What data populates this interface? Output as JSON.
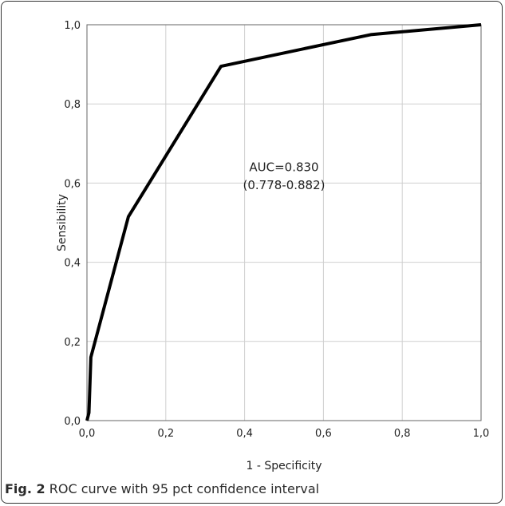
{
  "chart_data": {
    "type": "line",
    "xlabel": "1 - Specificity",
    "ylabel": "Sensibility",
    "xlim": [
      0,
      1
    ],
    "ylim": [
      0,
      1
    ],
    "grid": true,
    "x_ticks": [
      "0,0",
      "0,2",
      "0,4",
      "0,6",
      "0,8",
      "1,0"
    ],
    "y_ticks": [
      "0,0",
      "0,2",
      "0,4",
      "0,6",
      "0,8",
      "1,0"
    ],
    "series": [
      {
        "x": [
          0,
          0.005,
          0.01,
          0.105,
          0.34,
          0.72,
          1.0
        ],
        "y": [
          0,
          0.02,
          0.16,
          0.515,
          0.895,
          0.975,
          1.0
        ]
      }
    ],
    "annotation": {
      "line1": "AUC=0.830",
      "line2": "(0.778-0.882)"
    }
  },
  "caption": {
    "label": "Fig. 2",
    "text": "ROC curve with 95 pct confidence interval"
  }
}
